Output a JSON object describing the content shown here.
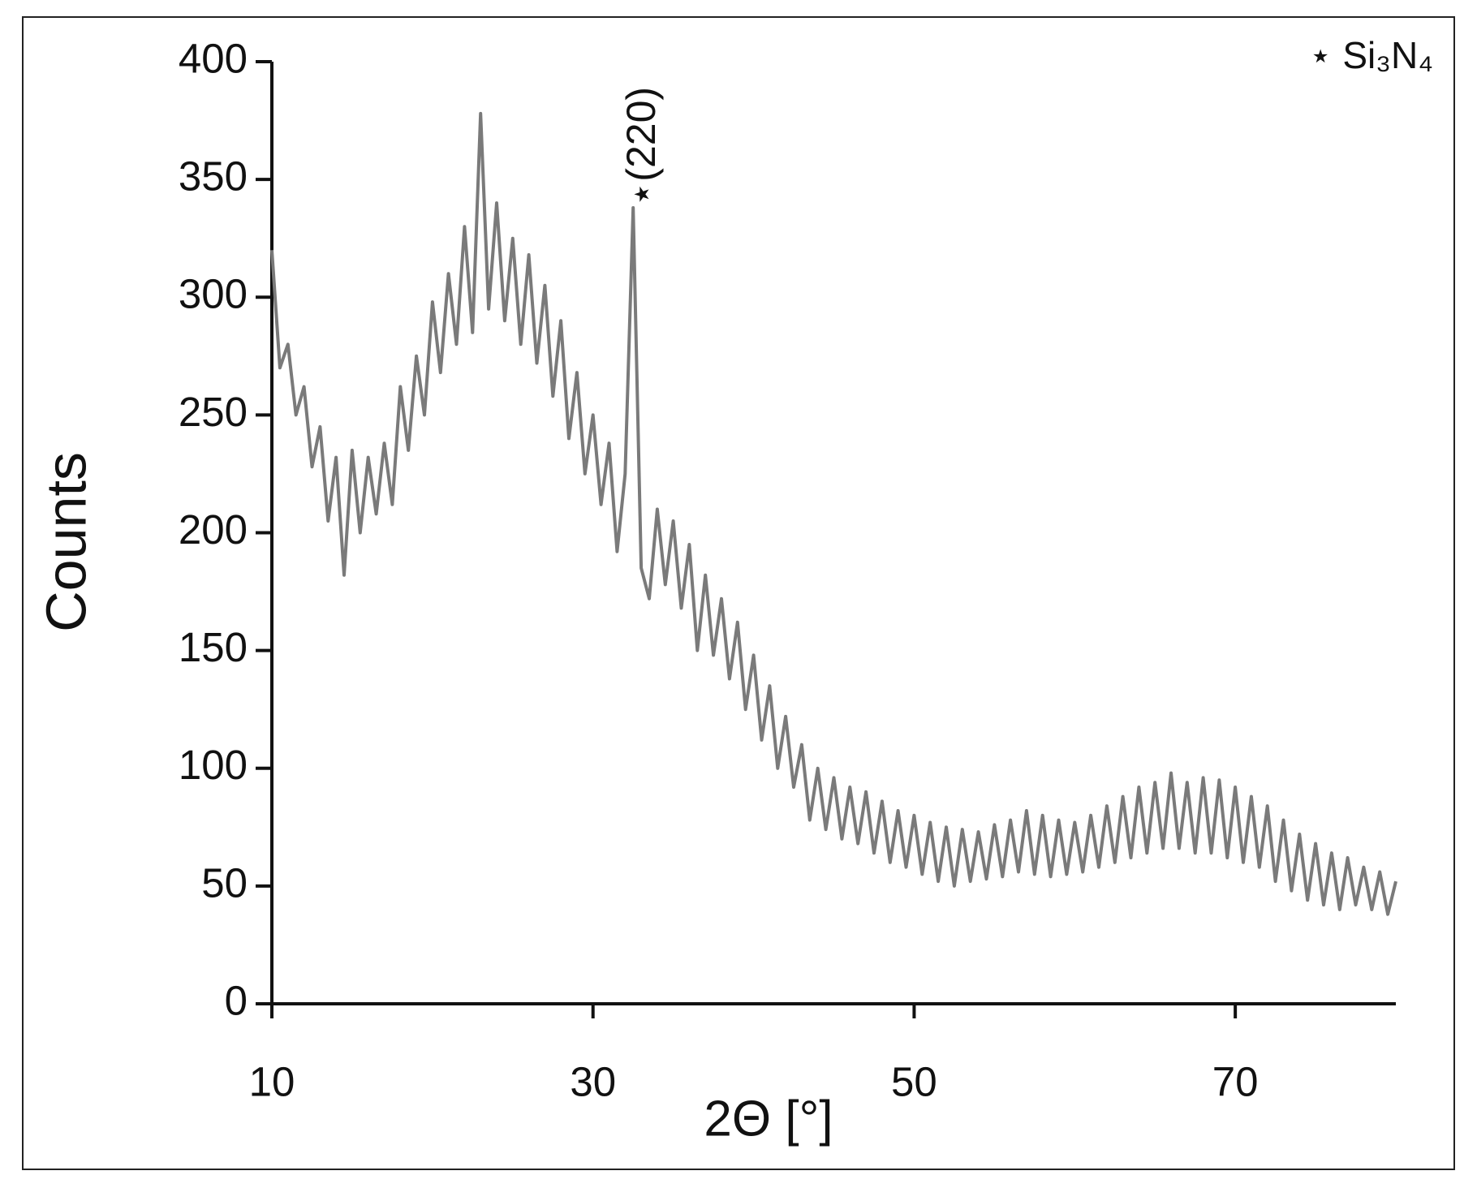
{
  "chart_data": {
    "type": "line",
    "x_label": "2Θ [°]",
    "y_label": "Counts",
    "annotations": [
      "⋆(220)",
      "⋆ Si₃N₄"
    ],
    "color": "#7a7a7a",
    "x": [
      10,
      10.5,
      11,
      11.5,
      12,
      12.5,
      13,
      13.5,
      14,
      14.5,
      15,
      15.5,
      16,
      16.5,
      17,
      17.5,
      18,
      18.5,
      19,
      19.5,
      20,
      20.5,
      21,
      21.5,
      22,
      22.5,
      23,
      23.5,
      24,
      24.5,
      25,
      25.5,
      26,
      26.5,
      27,
      27.5,
      28,
      28.5,
      29,
      29.5,
      30,
      30.5,
      31,
      31.5,
      32,
      32.5,
      33,
      33.5,
      34,
      34.5,
      35,
      35.5,
      36,
      36.5,
      37,
      37.5,
      38,
      38.5,
      39,
      39.5,
      40,
      40.5,
      41,
      41.5,
      42,
      42.5,
      43,
      43.5,
      44,
      44.5,
      45,
      45.5,
      46,
      46.5,
      47,
      47.5,
      48,
      48.5,
      49,
      49.5,
      50,
      50.5,
      51,
      51.5,
      52,
      52.5,
      53,
      53.5,
      54,
      54.5,
      55,
      55.5,
      56,
      56.5,
      57,
      57.5,
      58,
      58.5,
      59,
      59.5,
      60,
      60.5,
      61,
      61.5,
      62,
      62.5,
      63,
      63.5,
      64,
      64.5,
      65,
      65.5,
      66,
      66.5,
      67,
      67.5,
      68,
      68.5,
      69,
      69.5,
      70,
      70.5,
      71,
      71.5,
      72,
      72.5,
      73,
      73.5,
      74,
      74.5,
      75,
      75.5,
      76,
      76.5,
      77,
      77.5,
      78,
      78.5,
      79,
      79.5,
      80
    ],
    "values": [
      320,
      270,
      280,
      250,
      262,
      228,
      245,
      205,
      232,
      182,
      235,
      200,
      232,
      208,
      238,
      212,
      262,
      235,
      275,
      250,
      298,
      268,
      310,
      280,
      330,
      285,
      378,
      295,
      340,
      290,
      325,
      280,
      318,
      272,
      305,
      258,
      290,
      240,
      268,
      225,
      250,
      212,
      238,
      192,
      225,
      338,
      185,
      172,
      210,
      178,
      205,
      168,
      195,
      150,
      182,
      148,
      172,
      138,
      162,
      125,
      148,
      112,
      135,
      100,
      122,
      92,
      110,
      78,
      100,
      74,
      96,
      70,
      92,
      68,
      90,
      64,
      86,
      60,
      82,
      58,
      80,
      55,
      77,
      52,
      75,
      50,
      74,
      52,
      73,
      53,
      76,
      54,
      78,
      56,
      82,
      55,
      80,
      54,
      78,
      55,
      77,
      56,
      80,
      58,
      84,
      60,
      88,
      62,
      92,
      64,
      94,
      66,
      98,
      66,
      94,
      64,
      96,
      64,
      95,
      62,
      92,
      60,
      88,
      58,
      84,
      52,
      78,
      48,
      72,
      44,
      68,
      42,
      64,
      40,
      62,
      42,
      58,
      40,
      56,
      38,
      52
    ],
    "xlim": [
      10,
      80
    ],
    "xticks": [
      10,
      30,
      50,
      70
    ],
    "ylim": [
      0,
      400
    ],
    "yticks": [
      0,
      50,
      100,
      150,
      200,
      250,
      300,
      350,
      400
    ]
  }
}
